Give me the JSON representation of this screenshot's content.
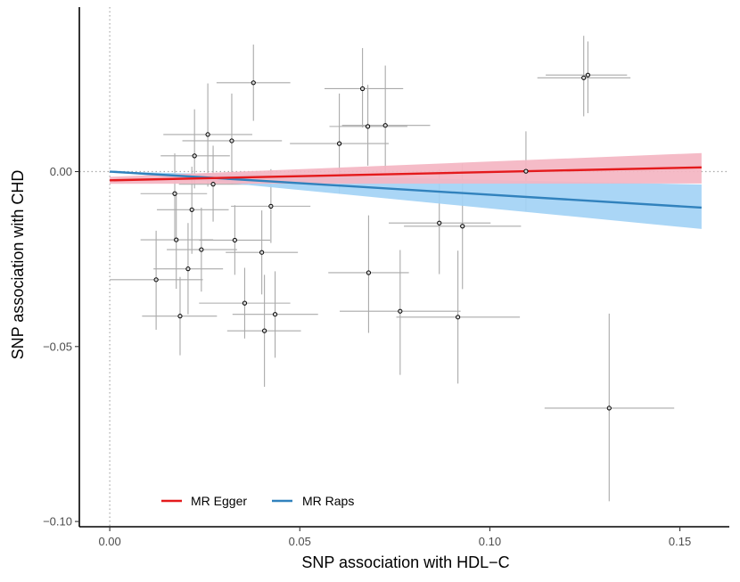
{
  "chart_data": {
    "type": "scatter",
    "title": "",
    "xlabel": "SNP association with HDL−C",
    "ylabel": "SNP association with CHD",
    "xlim": [
      -0.008,
      0.163
    ],
    "ylim": [
      -0.1015,
      0.047
    ],
    "xticks": [
      {
        "value": 0.0,
        "label": "0.00"
      },
      {
        "value": 0.05,
        "label": "0.05"
      },
      {
        "value": 0.1,
        "label": "0.10"
      },
      {
        "value": 0.15,
        "label": "0.15"
      }
    ],
    "yticks": [
      {
        "value": 0.0,
        "label": "0.00"
      },
      {
        "value": -0.05,
        "label": "−0.05"
      },
      {
        "value": -0.1,
        "label": "−0.10"
      }
    ],
    "reference_lines": {
      "x": 0.0,
      "y": 0.0,
      "color": "#a8a8a8"
    },
    "grid": false,
    "legend": {
      "position": "bottom-left",
      "entries": [
        {
          "label": "MR Egger",
          "color": "#e41a1c"
        },
        {
          "label": "MR Raps",
          "color": "#3182bd"
        }
      ]
    },
    "points_color": "#000000",
    "errorbar_color": "#aaaaaa",
    "points": [
      {
        "x": 0.0122,
        "y": -0.0309,
        "xlo": 0.0,
        "xhi": 0.0245,
        "ylo": -0.0452,
        "yhi": -0.0169
      },
      {
        "x": 0.0171,
        "y": -0.0063,
        "xlo": 0.0081,
        "xhi": 0.0256,
        "ylo": -0.0201,
        "yhi": 0.0052
      },
      {
        "x": 0.0175,
        "y": -0.0195,
        "xlo": 0.0081,
        "xhi": 0.0272,
        "ylo": -0.0335,
        "yhi": -0.0065
      },
      {
        "x": 0.0185,
        "y": -0.0413,
        "xlo": 0.0085,
        "xhi": 0.0282,
        "ylo": -0.0525,
        "yhi": -0.0301
      },
      {
        "x": 0.0206,
        "y": -0.0278,
        "xlo": 0.0115,
        "xhi": 0.0298,
        "ylo": -0.0408,
        "yhi": -0.0147
      },
      {
        "x": 0.0216,
        "y": -0.0109,
        "xlo": 0.0124,
        "xhi": 0.0313,
        "ylo": -0.0235,
        "yhi": 0.0014
      },
      {
        "x": 0.0223,
        "y": 0.0045,
        "xlo": 0.0134,
        "xhi": 0.0316,
        "ylo": -0.0048,
        "yhi": 0.0178
      },
      {
        "x": 0.0241,
        "y": -0.0223,
        "xlo": 0.015,
        "xhi": 0.0335,
        "ylo": -0.0343,
        "yhi": -0.0103
      },
      {
        "x": 0.0258,
        "y": 0.0106,
        "xlo": 0.0141,
        "xhi": 0.0375,
        "ylo": -0.0043,
        "yhi": 0.0252
      },
      {
        "x": 0.0272,
        "y": -0.0036,
        "xlo": 0.0182,
        "xhi": 0.0363,
        "ylo": -0.0143,
        "yhi": 0.0074
      },
      {
        "x": 0.0321,
        "y": 0.0088,
        "xlo": 0.0191,
        "xhi": 0.0453,
        "ylo": -0.0035,
        "yhi": 0.0223
      },
      {
        "x": 0.0329,
        "y": -0.0196,
        "xlo": 0.0235,
        "xhi": 0.0422,
        "ylo": -0.0295,
        "yhi": -0.0096
      },
      {
        "x": 0.0355,
        "y": -0.0376,
        "xlo": 0.0235,
        "xhi": 0.0475,
        "ylo": -0.0477,
        "yhi": -0.0275
      },
      {
        "x": 0.0378,
        "y": 0.0254,
        "xlo": 0.0281,
        "xhi": 0.0475,
        "ylo": 0.0145,
        "yhi": 0.0363
      },
      {
        "x": 0.04,
        "y": -0.0231,
        "xlo": 0.0305,
        "xhi": 0.0495,
        "ylo": -0.0351,
        "yhi": -0.0111
      },
      {
        "x": 0.0407,
        "y": -0.0455,
        "xlo": 0.0309,
        "xhi": 0.0503,
        "ylo": -0.0615,
        "yhi": -0.0295
      },
      {
        "x": 0.0424,
        "y": -0.0099,
        "xlo": 0.0319,
        "xhi": 0.0528,
        "ylo": -0.0204,
        "yhi": 0.0007
      },
      {
        "x": 0.0435,
        "y": -0.0408,
        "xlo": 0.0323,
        "xhi": 0.0548,
        "ylo": -0.0532,
        "yhi": -0.0285
      },
      {
        "x": 0.0604,
        "y": 0.008,
        "xlo": 0.0474,
        "xhi": 0.0734,
        "ylo": -0.0063,
        "yhi": 0.0223
      },
      {
        "x": 0.0665,
        "y": 0.0237,
        "xlo": 0.0565,
        "xhi": 0.0772,
        "ylo": 0.0126,
        "yhi": 0.0353
      },
      {
        "x": 0.0679,
        "y": 0.0129,
        "xlo": 0.0578,
        "xhi": 0.0783,
        "ylo": 0.0017,
        "yhi": 0.0248
      },
      {
        "x": 0.0681,
        "y": -0.0289,
        "xlo": 0.0575,
        "xhi": 0.0787,
        "ylo": -0.0461,
        "yhi": -0.0125
      },
      {
        "x": 0.0725,
        "y": 0.0132,
        "xlo": 0.0611,
        "xhi": 0.0843,
        "ylo": -0.0003,
        "yhi": 0.0303
      },
      {
        "x": 0.0764,
        "y": -0.0399,
        "xlo": 0.0605,
        "xhi": 0.0923,
        "ylo": -0.0581,
        "yhi": -0.0224
      },
      {
        "x": 0.0867,
        "y": -0.0147,
        "xlo": 0.0734,
        "xhi": 0.1002,
        "ylo": -0.0293,
        "yhi": 0.0007
      },
      {
        "x": 0.0916,
        "y": -0.0416,
        "xlo": 0.0754,
        "xhi": 0.1079,
        "ylo": -0.0606,
        "yhi": -0.0226
      },
      {
        "x": 0.0928,
        "y": -0.0156,
        "xlo": 0.0774,
        "xhi": 0.1082,
        "ylo": -0.0336,
        "yhi": 0.0023
      },
      {
        "x": 0.1095,
        "y": 0.0001,
        "xlo": 0.0925,
        "xhi": 0.1265,
        "ylo": -0.0113,
        "yhi": 0.0115
      },
      {
        "x": 0.1247,
        "y": 0.0268,
        "xlo": 0.1125,
        "xhi": 0.137,
        "ylo": 0.0158,
        "yhi": 0.0388
      },
      {
        "x": 0.1258,
        "y": 0.0276,
        "xlo": 0.1147,
        "xhi": 0.1361,
        "ylo": 0.0167,
        "yhi": 0.0372
      },
      {
        "x": 0.1314,
        "y": -0.0676,
        "xlo": 0.1144,
        "xhi": 0.1485,
        "ylo": -0.0942,
        "yhi": -0.0406
      }
    ],
    "series": [
      {
        "name": "MR Egger",
        "color": "#e41a1c",
        "band_color": "#f4b5c2",
        "x": [
          0.0,
          0.1557
        ],
        "y": [
          -0.0025,
          0.0012
        ],
        "band_lower": [
          -0.0035,
          -0.0034
        ],
        "band_upper": [
          -0.0015,
          0.0053
        ]
      },
      {
        "name": "MR Raps",
        "color": "#3182bd",
        "band_color": "#a3d3f5",
        "x": [
          0.0,
          0.1557
        ],
        "y": [
          0.0,
          -0.0103
        ],
        "band_lower": [
          0.0,
          -0.0164
        ],
        "band_upper": [
          0.0,
          -0.0037
        ]
      }
    ]
  }
}
